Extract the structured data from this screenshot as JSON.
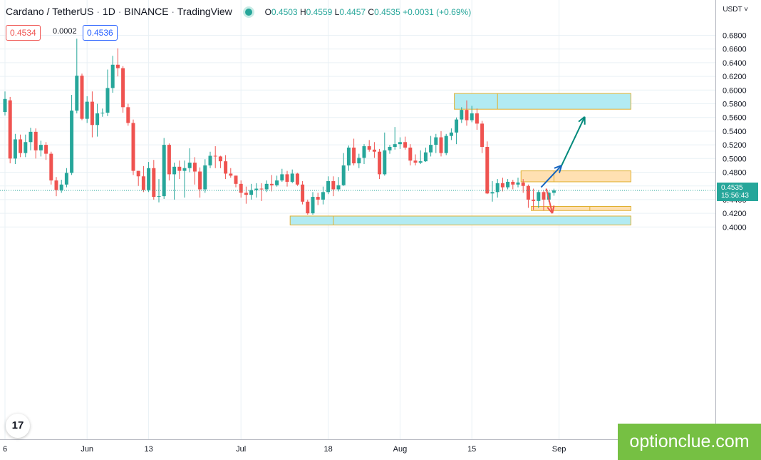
{
  "header": {
    "symbol": "Cardano / TetherUS",
    "interval": "1D",
    "exchange": "BINANCE",
    "source": "TradingView",
    "o_label": "O",
    "o_value": "0.4503",
    "h_label": "H",
    "h_value": "0.4559",
    "l_label": "L",
    "l_value": "0.4457",
    "c_label": "C",
    "c_value": "0.4535",
    "change": "+0.0031 (+0.69%)"
  },
  "trade": {
    "sell_price": "0.4534",
    "spread": "0.0002",
    "buy_price": "0.4536"
  },
  "currency_label": "USDT ˅",
  "current_price": {
    "value": "0.4535",
    "countdown": "15:56:43"
  },
  "watermark": "optionclue.com",
  "tv_logo": "17",
  "colors": {
    "up": "#26a69a",
    "down": "#ef5350",
    "zone_blue": "#b2ebf2",
    "zone_orange": "#ffe0b2"
  },
  "chart_data": {
    "type": "candlestick",
    "y_axis": {
      "min": 0.4,
      "max": 0.68,
      "ticks": [
        "0.4000",
        "0.4200",
        "0.4400",
        "0.4600",
        "0.4800",
        "0.5000",
        "0.5200",
        "0.5400",
        "0.5600",
        "0.5800",
        "0.6000",
        "0.6200",
        "0.6400",
        "0.6600",
        "0.6800"
      ]
    },
    "x_axis": {
      "labels": [
        {
          "text": "6",
          "index": 0
        },
        {
          "text": "Jun",
          "index": 16
        },
        {
          "text": "13",
          "index": 28
        },
        {
          "text": "Jul",
          "index": 46
        },
        {
          "text": "18",
          "index": 63
        },
        {
          "text": "Aug",
          "index": 77
        },
        {
          "text": "15",
          "index": 91
        },
        {
          "text": "Sep",
          "index": 108
        }
      ]
    },
    "candles": [
      [
        0.568,
        0.587,
        0.598,
        0.563
      ],
      [
        0.585,
        0.5,
        0.59,
        0.493
      ],
      [
        0.5,
        0.528,
        0.536,
        0.492
      ],
      [
        0.528,
        0.508,
        0.535,
        0.502
      ],
      [
        0.508,
        0.524,
        0.535,
        0.502
      ],
      [
        0.524,
        0.539,
        0.545,
        0.512
      ],
      [
        0.539,
        0.512,
        0.544,
        0.5
      ],
      [
        0.512,
        0.52,
        0.526,
        0.503
      ],
      [
        0.52,
        0.507,
        0.524,
        0.498
      ],
      [
        0.507,
        0.468,
        0.51,
        0.462
      ],
      [
        0.468,
        0.454,
        0.473,
        0.445
      ],
      [
        0.454,
        0.462,
        0.469,
        0.45
      ],
      [
        0.462,
        0.479,
        0.486,
        0.458
      ],
      [
        0.479,
        0.57,
        0.593,
        0.476
      ],
      [
        0.57,
        0.621,
        0.675,
        0.566
      ],
      [
        0.621,
        0.558,
        0.624,
        0.556
      ],
      [
        0.558,
        0.583,
        0.591,
        0.552
      ],
      [
        0.583,
        0.549,
        0.598,
        0.531
      ],
      [
        0.549,
        0.566,
        0.58,
        0.532
      ],
      [
        0.566,
        0.567,
        0.573,
        0.561
      ],
      [
        0.567,
        0.603,
        0.63,
        0.562
      ],
      [
        0.603,
        0.637,
        0.65,
        0.596
      ],
      [
        0.637,
        0.632,
        0.661,
        0.62
      ],
      [
        0.632,
        0.575,
        0.635,
        0.567
      ],
      [
        0.575,
        0.552,
        0.58,
        0.548
      ],
      [
        0.552,
        0.482,
        0.557,
        0.476
      ],
      [
        0.482,
        0.474,
        0.482,
        0.46
      ],
      [
        0.474,
        0.454,
        0.489,
        0.451
      ],
      [
        0.454,
        0.486,
        0.495,
        0.451
      ],
      [
        0.486,
        0.444,
        0.498,
        0.44
      ],
      [
        0.444,
        0.445,
        0.47,
        0.436
      ],
      [
        0.445,
        0.52,
        0.53,
        0.441
      ],
      [
        0.52,
        0.477,
        0.522,
        0.468
      ],
      [
        0.477,
        0.488,
        0.494,
        0.44
      ],
      [
        0.488,
        0.482,
        0.497,
        0.47
      ],
      [
        0.482,
        0.486,
        0.497,
        0.443
      ],
      [
        0.486,
        0.494,
        0.515,
        0.48
      ],
      [
        0.494,
        0.481,
        0.502,
        0.462
      ],
      [
        0.481,
        0.455,
        0.487,
        0.443
      ],
      [
        0.455,
        0.49,
        0.499,
        0.45
      ],
      [
        0.49,
        0.504,
        0.51,
        0.486
      ],
      [
        0.504,
        0.503,
        0.518,
        0.486
      ],
      [
        0.503,
        0.496,
        0.504,
        0.486
      ],
      [
        0.496,
        0.478,
        0.505,
        0.47
      ],
      [
        0.478,
        0.475,
        0.486,
        0.472
      ],
      [
        0.475,
        0.463,
        0.475,
        0.458
      ],
      [
        0.463,
        0.45,
        0.468,
        0.443
      ],
      [
        0.45,
        0.447,
        0.459,
        0.434
      ],
      [
        0.447,
        0.454,
        0.463,
        0.44
      ],
      [
        0.454,
        0.456,
        0.464,
        0.443
      ],
      [
        0.456,
        0.455,
        0.464,
        0.438
      ],
      [
        0.455,
        0.463,
        0.468,
        0.451
      ],
      [
        0.463,
        0.461,
        0.476,
        0.452
      ],
      [
        0.461,
        0.468,
        0.475,
        0.459
      ],
      [
        0.468,
        0.477,
        0.485,
        0.466
      ],
      [
        0.477,
        0.466,
        0.482,
        0.459
      ],
      [
        0.466,
        0.478,
        0.484,
        0.464
      ],
      [
        0.478,
        0.462,
        0.479,
        0.46
      ],
      [
        0.462,
        0.437,
        0.467,
        0.433
      ],
      [
        0.437,
        0.42,
        0.44,
        0.418
      ],
      [
        0.42,
        0.444,
        0.451,
        0.418
      ],
      [
        0.444,
        0.44,
        0.45,
        0.432
      ],
      [
        0.44,
        0.451,
        0.459,
        0.433
      ],
      [
        0.451,
        0.467,
        0.474,
        0.448
      ],
      [
        0.467,
        0.455,
        0.474,
        0.445
      ],
      [
        0.455,
        0.461,
        0.473,
        0.452
      ],
      [
        0.461,
        0.49,
        0.508,
        0.46
      ],
      [
        0.49,
        0.516,
        0.519,
        0.482
      ],
      [
        0.516,
        0.493,
        0.529,
        0.49
      ],
      [
        0.493,
        0.501,
        0.507,
        0.486
      ],
      [
        0.501,
        0.518,
        0.521,
        0.492
      ],
      [
        0.518,
        0.513,
        0.527,
        0.51
      ],
      [
        0.513,
        0.51,
        0.524,
        0.501
      ],
      [
        0.51,
        0.477,
        0.514,
        0.47
      ],
      [
        0.477,
        0.512,
        0.538,
        0.475
      ],
      [
        0.512,
        0.517,
        0.52,
        0.507
      ],
      [
        0.517,
        0.521,
        0.546,
        0.513
      ],
      [
        0.521,
        0.524,
        0.531,
        0.514
      ],
      [
        0.524,
        0.516,
        0.532,
        0.513
      ],
      [
        0.516,
        0.497,
        0.521,
        0.49
      ],
      [
        0.497,
        0.494,
        0.506,
        0.49
      ],
      [
        0.494,
        0.496,
        0.512,
        0.492
      ],
      [
        0.496,
        0.509,
        0.516,
        0.495
      ],
      [
        0.509,
        0.52,
        0.533,
        0.503
      ],
      [
        0.52,
        0.531,
        0.536,
        0.508
      ],
      [
        0.531,
        0.508,
        0.54,
        0.503
      ],
      [
        0.508,
        0.533,
        0.536,
        0.505
      ],
      [
        0.533,
        0.538,
        0.544,
        0.527
      ],
      [
        0.538,
        0.557,
        0.56,
        0.521
      ],
      [
        0.557,
        0.571,
        0.575,
        0.552
      ],
      [
        0.571,
        0.556,
        0.585,
        0.548
      ],
      [
        0.556,
        0.566,
        0.577,
        0.553
      ],
      [
        0.566,
        0.551,
        0.573,
        0.542
      ],
      [
        0.551,
        0.517,
        0.555,
        0.508
      ],
      [
        0.517,
        0.449,
        0.525,
        0.448
      ],
      [
        0.449,
        0.451,
        0.467,
        0.437
      ],
      [
        0.451,
        0.464,
        0.47,
        0.443
      ],
      [
        0.464,
        0.458,
        0.472,
        0.452
      ],
      [
        0.458,
        0.466,
        0.47,
        0.455
      ],
      [
        0.466,
        0.462,
        0.469,
        0.455
      ],
      [
        0.462,
        0.465,
        0.472,
        0.458
      ],
      [
        0.465,
        0.46,
        0.47,
        0.45
      ],
      [
        0.46,
        0.44,
        0.462,
        0.428
      ],
      [
        0.44,
        0.438,
        0.456,
        0.425
      ],
      [
        0.438,
        0.451,
        0.454,
        0.428
      ],
      [
        0.451,
        0.44,
        0.453,
        0.424
      ],
      [
        0.44,
        0.45,
        0.452,
        0.437
      ],
      [
        0.45,
        0.4535,
        0.4559,
        0.4457
      ]
    ],
    "current_price": 0.4535,
    "zones": [
      {
        "type": "resistance-area",
        "from_index": 88,
        "to_index": 122,
        "low": 0.572,
        "high": 0.595,
        "split_index": 96,
        "color": "#b2ebf2"
      },
      {
        "type": "support-area",
        "from_index": 56,
        "to_index": 122,
        "low": 0.403,
        "high": 0.416,
        "split_index": 64,
        "color": "#b2ebf2"
      },
      {
        "type": "resistance-area",
        "from_index": 101,
        "to_index": 122,
        "low": 0.466,
        "high": 0.482,
        "split_index": 107,
        "color": "#ffe0b2"
      },
      {
        "type": "support-area",
        "from_index": 103,
        "to_index": 122,
        "low": 0.424,
        "high": 0.43,
        "split_index": 114,
        "color": "#ffe0b2"
      }
    ],
    "arrows": [
      {
        "name": "blue-arrow",
        "color": "#1565c0",
        "from": [
          104.5,
          0.458
        ],
        "to": [
          108.5,
          0.49
        ]
      },
      {
        "name": "green-arrow",
        "color": "#00897b",
        "from": [
          108.5,
          0.49
        ],
        "to": [
          113,
          0.561
        ]
      },
      {
        "name": "red-arrow",
        "color": "#ef5350",
        "from": [
          105.5,
          0.456
        ],
        "to": [
          106.7,
          0.42
        ]
      }
    ]
  }
}
